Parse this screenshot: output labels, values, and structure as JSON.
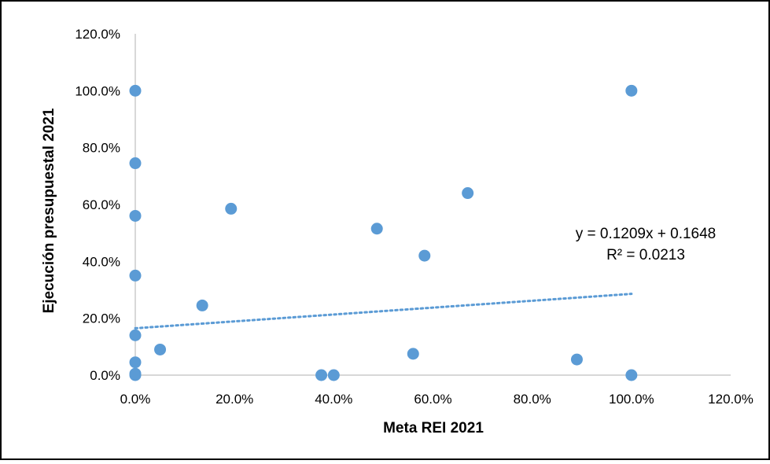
{
  "chart_data": {
    "type": "scatter",
    "xlabel": "Meta REI 2021",
    "ylabel": "Ejecución presupuestal 2021",
    "xlim": [
      0,
      1.2
    ],
    "ylim": [
      0,
      1.2
    ],
    "x_ticks": [
      "0.0%",
      "20.0%",
      "40.0%",
      "60.0%",
      "80.0%",
      "100.0%",
      "120.0%"
    ],
    "y_ticks": [
      "0.0%",
      "20.0%",
      "40.0%",
      "60.0%",
      "80.0%",
      "100.0%",
      "120.0%"
    ],
    "grid": false,
    "legend": "none",
    "marker_color": "#5B9BD5",
    "points": [
      {
        "x": 0.0,
        "y": 1.0
      },
      {
        "x": 0.0,
        "y": 0.745
      },
      {
        "x": 0.0,
        "y": 0.56
      },
      {
        "x": 0.0,
        "y": 0.35
      },
      {
        "x": 0.0,
        "y": 0.14
      },
      {
        "x": 0.0,
        "y": 0.045
      },
      {
        "x": 0.0,
        "y": 0.005
      },
      {
        "x": 0.0,
        "y": 0.0
      },
      {
        "x": 0.05,
        "y": 0.09
      },
      {
        "x": 0.135,
        "y": 0.245
      },
      {
        "x": 0.193,
        "y": 0.585
      },
      {
        "x": 0.375,
        "y": 0.0
      },
      {
        "x": 0.4,
        "y": 0.0
      },
      {
        "x": 0.487,
        "y": 0.515
      },
      {
        "x": 0.56,
        "y": 0.075
      },
      {
        "x": 0.583,
        "y": 0.42
      },
      {
        "x": 0.67,
        "y": 0.64
      },
      {
        "x": 0.89,
        "y": 0.055
      },
      {
        "x": 1.0,
        "y": 1.0
      },
      {
        "x": 1.0,
        "y": 0.0
      }
    ],
    "trendline": {
      "type": "linear",
      "slope": 0.1209,
      "intercept": 0.1648,
      "x_range": [
        0,
        1.0
      ],
      "color": "#5B9BD5",
      "equation": "y = 0.1209x + 0.1648",
      "r_squared": "R² = 0.0213"
    }
  }
}
